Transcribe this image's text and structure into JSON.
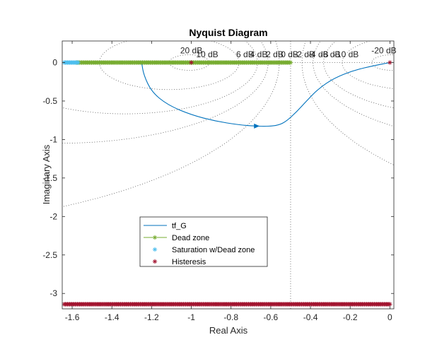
{
  "chart_data": {
    "type": "line",
    "title": "Nyquist Diagram",
    "xlabel": "Real Axis",
    "ylabel": "Imaginary Axis",
    "xlim": [
      -1.65,
      0.02
    ],
    "ylim": [
      -3.2,
      0.28
    ],
    "xticks": [
      -1.6,
      -1.4,
      -1.2,
      -1,
      -0.8,
      -0.6,
      -0.4,
      -0.2,
      0
    ],
    "xtick_labels": [
      "-1.6",
      "-1.4",
      "-1.2",
      "-1",
      "-0.8",
      "-0.6",
      "-0.4",
      "-0.2",
      "0"
    ],
    "yticks": [
      0,
      -0.5,
      -1,
      -1.5,
      -2,
      -2.5,
      -3
    ],
    "ytick_labels": [
      "0",
      "-0.5",
      "-1",
      "-1.5",
      "-2",
      "-2.5",
      "-3"
    ],
    "grid": "m-circles dotted",
    "db_labels": [
      {
        "text": "20 dB",
        "x": -1.0,
        "y": 0.12
      },
      {
        "text": "10 dB",
        "x": -0.92,
        "y": 0.07
      },
      {
        "text": "6 dB",
        "x": -0.73,
        "y": 0.07
      },
      {
        "text": "4 dB",
        "x": -0.66,
        "y": 0.07
      },
      {
        "text": "2 dB",
        "x": -0.58,
        "y": 0.07
      },
      {
        "text": "0 dB",
        "x": -0.505,
        "y": 0.07
      },
      {
        "text": "-2 dB",
        "x": -0.43,
        "y": 0.07
      },
      {
        "text": "-4 dB",
        "x": -0.36,
        "y": 0.07
      },
      {
        "text": "-6 dB",
        "x": -0.3,
        "y": 0.07
      },
      {
        "text": "-10 dB",
        "x": -0.22,
        "y": 0.07
      },
      {
        "text": "-20 dB",
        "x": -0.03,
        "y": 0.12
      }
    ],
    "series": [
      {
        "name": "tf_G",
        "color": "#0072BD",
        "x": [
          -1.25,
          -1.24,
          -1.2,
          -1.12,
          -1.0,
          -0.88,
          -0.76,
          -0.68,
          -0.62,
          -0.56,
          -0.52,
          -0.47,
          -0.42,
          -0.36,
          -0.28,
          -0.18,
          -0.08,
          0.0
        ],
        "y": [
          0.0,
          -0.16,
          -0.38,
          -0.55,
          -0.68,
          -0.76,
          -0.81,
          -0.825,
          -0.83,
          -0.815,
          -0.76,
          -0.64,
          -0.5,
          -0.34,
          -0.2,
          -0.1,
          -0.04,
          0.0
        ],
        "arrow_at": {
          "x": -0.67,
          "y": -0.825
        }
      },
      {
        "name": "Dead zone",
        "color": "#77AC30",
        "marker": "*",
        "x_range": [
          -1.58,
          -0.5
        ],
        "y": 0
      },
      {
        "name": "Saturation w/Dead zone",
        "color": "#4DBEEE",
        "marker": "*",
        "x_range": [
          -1.64,
          -1.57
        ],
        "y": 0
      },
      {
        "name": "Histeresis",
        "color": "#A2142F",
        "marker": "*",
        "x_range": [
          -1.64,
          0.0
        ],
        "y": -3.14,
        "extra_points": [
          {
            "x": -1.0,
            "y": 0.0
          },
          {
            "x": 0.0,
            "y": 0.0
          }
        ]
      }
    ],
    "critical_line_x": -0.5,
    "legend_position": "lower-left-center"
  }
}
